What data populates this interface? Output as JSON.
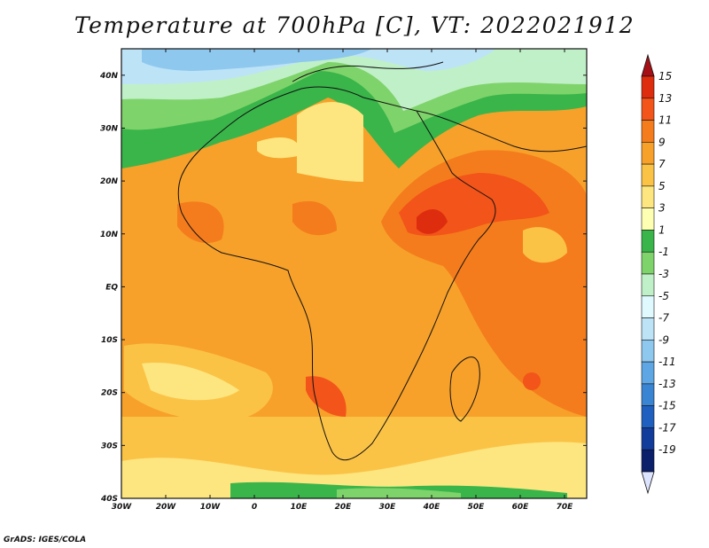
{
  "title": "Temperature at 700hPa [C], VT: 2022021912",
  "footer": "GrADS: IGES/COLA",
  "map": {
    "lon_range": [
      -30,
      75
    ],
    "lat_range": [
      -40,
      45
    ],
    "lat_ticks": [
      "40N",
      "30N",
      "20N",
      "10N",
      "EQ",
      "10S",
      "20S",
      "30S",
      "40S"
    ],
    "lon_ticks": [
      "30W",
      "20W",
      "10W",
      "0",
      "10E",
      "20E",
      "30E",
      "40E",
      "50E",
      "60E",
      "70E"
    ]
  },
  "colorbar": {
    "labels": [
      "15",
      "13",
      "11",
      "9",
      "7",
      "5",
      "3",
      "1",
      "-1",
      "-3",
      "-5",
      "-7",
      "-9",
      "-11",
      "-13",
      "-15",
      "-17",
      "-19"
    ],
    "colors": [
      "#a50f15",
      "#de2d0e",
      "#f2541a",
      "#f47c1c",
      "#f7a12a",
      "#fbc346",
      "#fde680",
      "#ffffb3",
      "#39b54a",
      "#7fd36b",
      "#c0f0c8",
      "#dff9ff",
      "#bde3f7",
      "#8fc8ef",
      "#5ea7e4",
      "#3a84d4",
      "#1f5fbf",
      "#123c9c",
      "#0b1f6b",
      "#dde4ff"
    ]
  }
}
